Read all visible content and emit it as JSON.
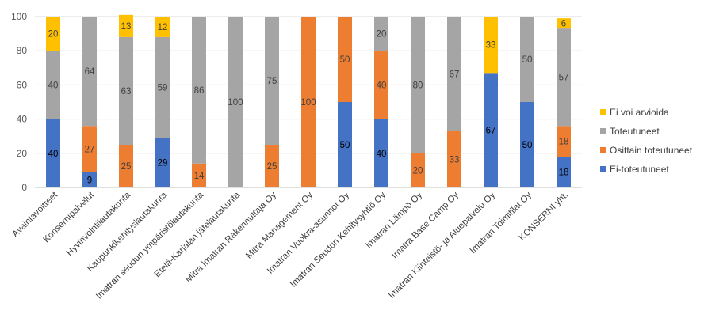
{
  "chart_data": {
    "type": "bar",
    "stacked": true,
    "categories": [
      "Avaintavoitteet",
      "Konsernipalvelut",
      "Hyvinvointilautakunta",
      "Kaupunkikehityslautakunta",
      "Imatran seudun ympäristölautakunta",
      "Etelä-Karjalan jätelautakunta",
      "Mitra Imatran Rakennuttaja Oy",
      "Mitra Management Oy",
      "Imatran Vuokra-asunnot Oy",
      "Imatran Seudun Kehitysyhtiö Oy",
      "Imatran Lämpö Oy",
      "Imatra Base Camp Oy",
      "Imatran Kiinteistö- ja Aluepalvelu Oy",
      "Imatran Toimitilat Oy",
      "KONSERNI yht."
    ],
    "series": [
      {
        "name": "Ei-toteutuneet",
        "color": "#4472C4",
        "label_color": "#000000",
        "values": [
          40,
          9,
          0,
          29,
          0,
          0,
          0,
          0,
          50,
          40,
          0,
          0,
          67,
          50,
          18
        ]
      },
      {
        "name": "Osittain toteutuneet",
        "color": "#ED7D31",
        "label_color": "#404040",
        "values": [
          0,
          27,
          25,
          0,
          14,
          0,
          25,
          100,
          50,
          40,
          20,
          33,
          0,
          0,
          18
        ]
      },
      {
        "name": "Toteutuneet",
        "color": "#A5A5A5",
        "label_color": "#404040",
        "values": [
          40,
          64,
          63,
          59,
          86,
          100,
          75,
          0,
          0,
          20,
          80,
          67,
          0,
          50,
          57
        ]
      },
      {
        "name": "Ei voi arvioida",
        "color": "#FFC000",
        "label_color": "#404040",
        "values": [
          20,
          0,
          13,
          12,
          0,
          0,
          0,
          0,
          0,
          0,
          0,
          0,
          33,
          0,
          6
        ]
      }
    ],
    "legend_order": [
      "Ei voi arvioida",
      "Toteutuneet",
      "Osittain toteutuneet",
      "Ei-toteutuneet"
    ],
    "ylim": [
      0,
      100
    ],
    "yticks": [
      0,
      20,
      40,
      60,
      80,
      100
    ],
    "grid": true,
    "legend_position": "right",
    "title": "",
    "xlabel": "",
    "ylabel": ""
  }
}
